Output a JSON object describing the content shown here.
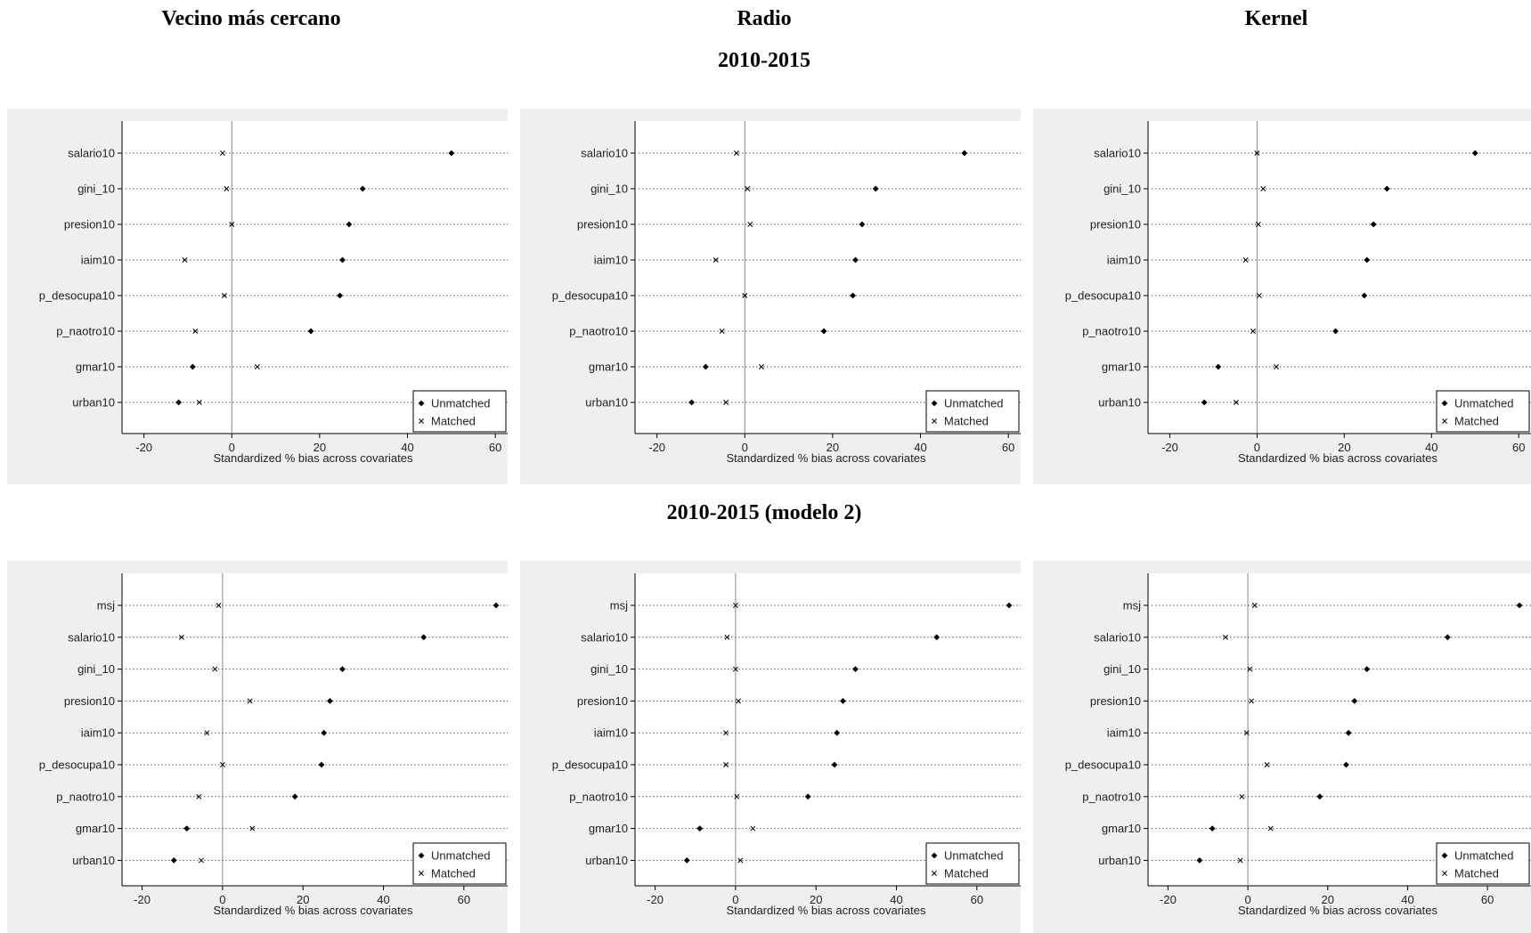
{
  "headers": {
    "col1": "Vecino más cercano",
    "col2": "Radio",
    "col3": "Kernel",
    "row1": "2010-2015",
    "row2": "2010-2015 (modelo 2)"
  },
  "chart_data": [
    {
      "type": "dot",
      "title": "",
      "xlabel": "Standardized % bias across covariates",
      "xlim": [
        -25,
        62
      ],
      "xticks": [
        "-20",
        "0",
        "20",
        "40",
        "60"
      ],
      "legend": [
        "Unmatched",
        "Matched"
      ],
      "legend_position": "bottom-right",
      "categories": [
        "salario10",
        "gini_10",
        "presion10",
        "iaim10",
        "p_desocupa10",
        "p_naotro10",
        "gmar10",
        "urban10"
      ],
      "series": [
        {
          "name": "Unmatched",
          "values": [
            50.0,
            29.8,
            26.7,
            25.2,
            24.6,
            18.0,
            -8.9,
            -12.1
          ]
        },
        {
          "name": "Matched",
          "values": [
            -2.1,
            -1.2,
            0.0,
            -10.7,
            -1.7,
            -8.3,
            5.8,
            -7.4
          ]
        }
      ]
    },
    {
      "type": "dot",
      "title": "",
      "xlabel": "Standardized % bias across covariates",
      "xlim": [
        -25,
        62
      ],
      "xticks": [
        "-20",
        "0",
        "20",
        "40",
        "60"
      ],
      "legend": [
        "Unmatched",
        "Matched"
      ],
      "legend_position": "bottom-right",
      "categories": [
        "salario10",
        "gini_10",
        "presion10",
        "iaim10",
        "p_desocupa10",
        "p_naotro10",
        "gmar10",
        "urban10"
      ],
      "series": [
        {
          "name": "Unmatched",
          "values": [
            50.0,
            29.8,
            26.7,
            25.2,
            24.6,
            18.0,
            -8.9,
            -12.1
          ]
        },
        {
          "name": "Matched",
          "values": [
            -1.9,
            0.6,
            1.2,
            -6.6,
            0.0,
            -5.2,
            3.8,
            -4.3
          ]
        }
      ]
    },
    {
      "type": "dot",
      "title": "",
      "xlabel": "Standardized % bias across covariates",
      "xlim": [
        -25,
        62
      ],
      "xticks": [
        "-20",
        "0",
        "20",
        "40",
        "60"
      ],
      "legend": [
        "Unmatched",
        "Matched"
      ],
      "legend_position": "bottom-right",
      "categories": [
        "salario10",
        "gini_10",
        "presion10",
        "iaim10",
        "p_desocupa10",
        "p_naotro10",
        "gmar10",
        "urban10"
      ],
      "series": [
        {
          "name": "Unmatched",
          "values": [
            50.0,
            29.8,
            26.7,
            25.2,
            24.6,
            18.0,
            -8.9,
            -12.1
          ]
        },
        {
          "name": "Matched",
          "values": [
            0.0,
            1.4,
            0.3,
            -2.6,
            0.5,
            -0.9,
            4.4,
            -4.8
          ]
        }
      ]
    },
    {
      "type": "dot",
      "title": "",
      "xlabel": "Standardized % bias across covariates",
      "xlim": [
        -25,
        70
      ],
      "xticks": [
        "-20",
        "0",
        "20",
        "40",
        "60"
      ],
      "legend": [
        "Unmatched",
        "Matched"
      ],
      "legend_position": "bottom-right",
      "categories": [
        "msj",
        "salario10",
        "gini_10",
        "presion10",
        "iaim10",
        "p_desocupa10",
        "p_naotro10",
        "gmar10",
        "urban10"
      ],
      "series": [
        {
          "name": "Unmatched",
          "values": [
            68.0,
            50.0,
            29.8,
            26.7,
            25.2,
            24.6,
            18.0,
            -8.9,
            -12.1
          ]
        },
        {
          "name": "Matched",
          "values": [
            -1.0,
            -10.2,
            -1.9,
            6.8,
            -3.9,
            0.0,
            -5.9,
            7.4,
            -5.3
          ]
        }
      ]
    },
    {
      "type": "dot",
      "title": "",
      "xlabel": "Standardized % bias across covariates",
      "xlim": [
        -25,
        70
      ],
      "xticks": [
        "-20",
        "0",
        "20",
        "40",
        "60"
      ],
      "legend": [
        "Unmatched",
        "Matched"
      ],
      "legend_position": "bottom-right",
      "categories": [
        "msj",
        "salario10",
        "gini_10",
        "presion10",
        "iaim10",
        "p_desocupa10",
        "p_naotro10",
        "gmar10",
        "urban10"
      ],
      "series": [
        {
          "name": "Unmatched",
          "values": [
            68.0,
            50.0,
            29.8,
            26.7,
            25.2,
            24.6,
            18.0,
            -8.9,
            -12.1
          ]
        },
        {
          "name": "Matched",
          "values": [
            0.0,
            -2.1,
            0.0,
            0.7,
            -2.4,
            -2.4,
            0.3,
            4.3,
            1.2
          ]
        }
      ]
    },
    {
      "type": "dot",
      "title": "",
      "xlabel": "Standardized % bias across covariates",
      "xlim": [
        -25,
        70
      ],
      "xticks": [
        "-20",
        "0",
        "20",
        "40",
        "60"
      ],
      "legend": [
        "Unmatched",
        "Matched"
      ],
      "legend_position": "bottom-right",
      "categories": [
        "msj",
        "salario10",
        "gini_10",
        "presion10",
        "iaim10",
        "p_desocupa10",
        "p_naotro10",
        "gmar10",
        "urban10"
      ],
      "series": [
        {
          "name": "Unmatched",
          "values": [
            68.0,
            50.0,
            29.8,
            26.7,
            25.2,
            24.6,
            18.0,
            -8.9,
            -12.1
          ]
        },
        {
          "name": "Matched",
          "values": [
            1.7,
            -5.6,
            0.5,
            0.9,
            -0.3,
            4.8,
            -1.5,
            5.7,
            -1.9
          ]
        }
      ]
    }
  ]
}
